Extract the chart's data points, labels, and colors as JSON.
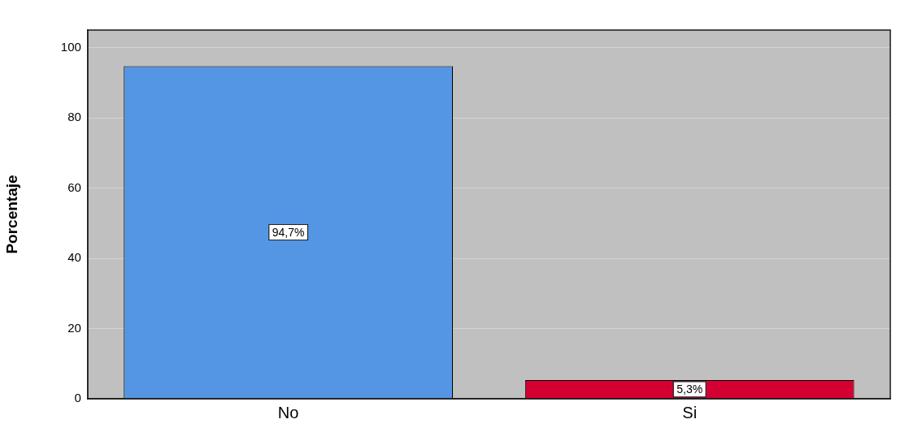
{
  "chart_data": {
    "type": "bar",
    "categories": [
      "No",
      "Si"
    ],
    "values": [
      94.7,
      5.3
    ],
    "colors": [
      "#5496e3",
      "#d50032"
    ],
    "value_labels": [
      "94,7%",
      "5,3%"
    ],
    "ylabel": "Porcentaje",
    "ylim": [
      0,
      105
    ],
    "yticks": [
      0,
      20,
      40,
      60,
      80,
      100
    ],
    "grid": "y"
  }
}
